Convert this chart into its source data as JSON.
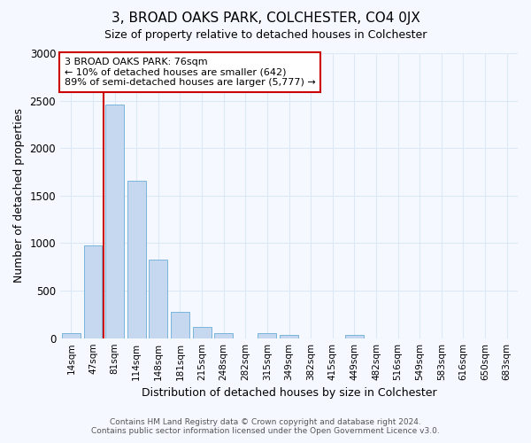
{
  "title": "3, BROAD OAKS PARK, COLCHESTER, CO4 0JX",
  "subtitle": "Size of property relative to detached houses in Colchester",
  "xlabel": "Distribution of detached houses by size in Colchester",
  "ylabel": "Number of detached properties",
  "bar_categories": [
    "14sqm",
    "47sqm",
    "81sqm",
    "114sqm",
    "148sqm",
    "181sqm",
    "215sqm",
    "248sqm",
    "282sqm",
    "315sqm",
    "349sqm",
    "382sqm",
    "415sqm",
    "449sqm",
    "482sqm",
    "516sqm",
    "549sqm",
    "583sqm",
    "616sqm",
    "650sqm",
    "683sqm"
  ],
  "bar_values": [
    55,
    975,
    2460,
    1660,
    830,
    275,
    120,
    50,
    0,
    50,
    35,
    0,
    0,
    30,
    0,
    0,
    0,
    0,
    0,
    0,
    0
  ],
  "bar_color": "#c5d8f0",
  "bar_edge_color": "#6aaed6",
  "ylim": [
    0,
    3000
  ],
  "yticks": [
    0,
    500,
    1000,
    1500,
    2000,
    2500,
    3000
  ],
  "property_line_x": 1.5,
  "property_line_color": "#cc0000",
  "annotation_text": "3 BROAD OAKS PARK: 76sqm\n← 10% of detached houses are smaller (642)\n89% of semi-detached houses are larger (5,777) →",
  "annotation_box_facecolor": "#ffffff",
  "annotation_box_edgecolor": "#cc0000",
  "footer_line1": "Contains HM Land Registry data © Crown copyright and database right 2024.",
  "footer_line2": "Contains public sector information licensed under the Open Government Licence v3.0.",
  "fig_bg_color": "#f5f8ff",
  "plot_bg_color": "#f5f8ff",
  "grid_color": "#dce8f5"
}
